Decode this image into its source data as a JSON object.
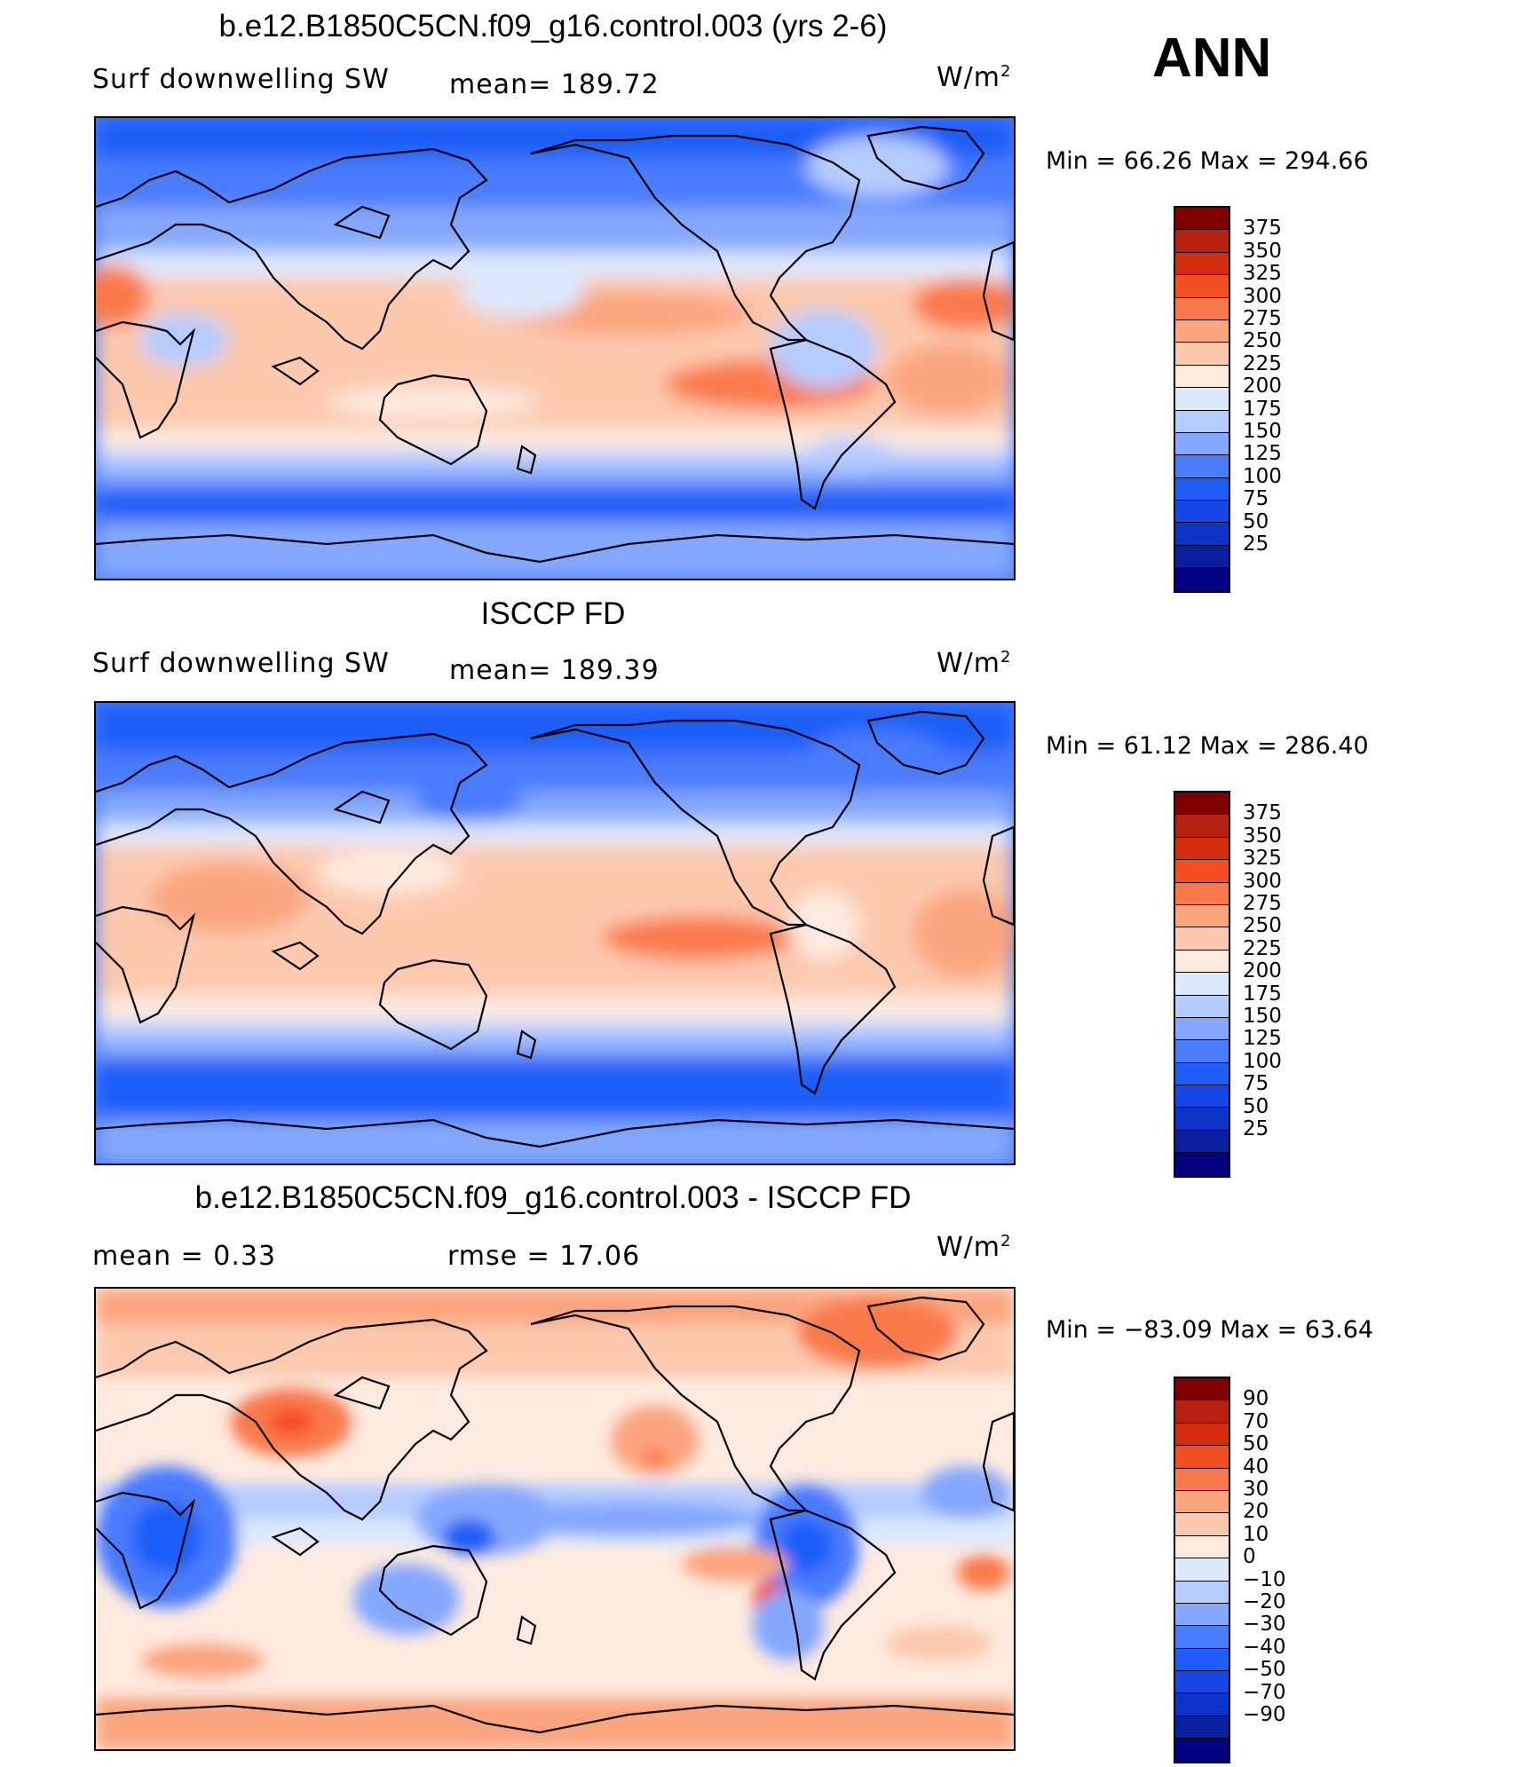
{
  "season": "ANN",
  "colors": {
    "abs_scale": [
      "#000080",
      "#0a1fa0",
      "#0d33c8",
      "#1746e6",
      "#1f5ef8",
      "#4a7cff",
      "#84a8ff",
      "#b5ccff",
      "#dce9fd",
      "#fdeade",
      "#fcc9ad",
      "#fba57f",
      "#fa7a4c",
      "#f44d22",
      "#d42d0e",
      "#b7200e",
      "#800000"
    ],
    "diff_scale": [
      "#000080",
      "#0a1fa0",
      "#0d33c8",
      "#1746e6",
      "#1f5ef8",
      "#4a7cff",
      "#84a8ff",
      "#b5ccff",
      "#dce9fd",
      "#fdeade",
      "#fcc9ad",
      "#fba57f",
      "#fa7a4c",
      "#f44d22",
      "#d42d0e",
      "#b7200e",
      "#800000"
    ]
  },
  "panels": [
    {
      "title": "b.e12.B1850C5CN.f09_g16.control.003 (yrs 2-6)",
      "left_label": "Surf  downwelling  SW",
      "center_label": "mean=  189.72",
      "units": "W/m",
      "units_exp": "2",
      "minmax": "Min  =    66.26  Max  =  294.66",
      "ticks": [
        "375",
        "350",
        "325",
        "300",
        "275",
        "250",
        "225",
        "200",
        "175",
        "150",
        "125",
        "100",
        "75",
        "50",
        "25"
      ],
      "scale": "abs"
    },
    {
      "title": "ISCCP FD",
      "left_label": "Surf  downwelling  SW",
      "center_label": "mean=  189.39",
      "units": "W/m",
      "units_exp": "2",
      "minmax": "Min  =    61.12  Max  =  286.40",
      "ticks": [
        "375",
        "350",
        "325",
        "300",
        "275",
        "250",
        "225",
        "200",
        "175",
        "150",
        "125",
        "100",
        "75",
        "50",
        "25"
      ],
      "scale": "abs"
    },
    {
      "title": "b.e12.B1850C5CN.f09_g16.control.003 - ISCCP FD",
      "left_label": "mean  =      0.33",
      "center_label": "rmse  =    17.06",
      "units": "W/m",
      "units_exp": "2",
      "minmax": "Min  =  −83.09  Max  =     63.64",
      "ticks": [
        "90",
        "70",
        "50",
        "40",
        "30",
        "20",
        "10",
        "0",
        "−10",
        "−20",
        "−30",
        "−40",
        "−50",
        "−70",
        "−90"
      ],
      "scale": "diff"
    }
  ]
}
